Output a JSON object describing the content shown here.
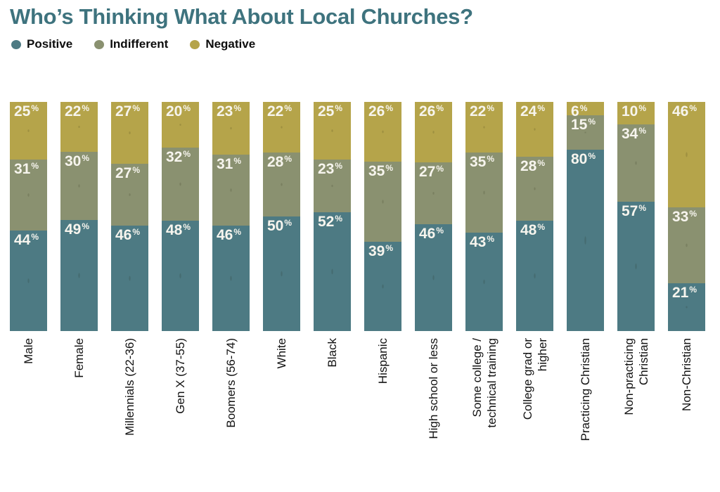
{
  "title": "Who’s Thinking What About Local Churches?",
  "colors": {
    "title": "#3e737e",
    "positive": "#4d7a83",
    "indifferent": "#8a9170",
    "negative": "#b5a44a",
    "value_text": "#f7f5ee",
    "category_text": "#111111",
    "background": "#ffffff"
  },
  "legend": {
    "items": [
      {
        "label": "Positive",
        "color": "#4d7a83"
      },
      {
        "label": "Indifferent",
        "color": "#8a9170"
      },
      {
        "label": "Negative",
        "color": "#b5a44a"
      }
    ]
  },
  "chart_data": {
    "type": "bar",
    "subtype": "100-percent-stacked-vertical",
    "title": "Who’s Thinking What About Local Churches?",
    "value_suffix": "%",
    "legend_position": "top-left",
    "grid": false,
    "axis": "none (values labeled on segments)",
    "categories": [
      "Male",
      "Female",
      "Millennials (22-36)",
      "Gen X (37-55)",
      "Boomers (56-74)",
      "White",
      "Black",
      "Hispanic",
      "High school or less",
      "Some college /\ntechnical training",
      "College grad or\nhigher",
      "Practicing Christian",
      "Non-practicing\nChristian",
      "Non-Christian"
    ],
    "series": [
      {
        "name": "Positive",
        "color": "#4d7a83",
        "values": [
          44,
          49,
          46,
          48,
          46,
          50,
          52,
          39,
          46,
          43,
          48,
          80,
          57,
          21
        ]
      },
      {
        "name": "Indifferent",
        "color": "#8a9170",
        "values": [
          31,
          30,
          27,
          32,
          31,
          28,
          23,
          35,
          27,
          35,
          28,
          15,
          34,
          33
        ]
      },
      {
        "name": "Negative",
        "color": "#b5a44a",
        "values": [
          25,
          22,
          27,
          20,
          23,
          22,
          25,
          26,
          26,
          22,
          24,
          6,
          10,
          46
        ]
      }
    ],
    "stack_order_top_to_bottom": [
      "Negative",
      "Indifferent",
      "Positive"
    ]
  }
}
